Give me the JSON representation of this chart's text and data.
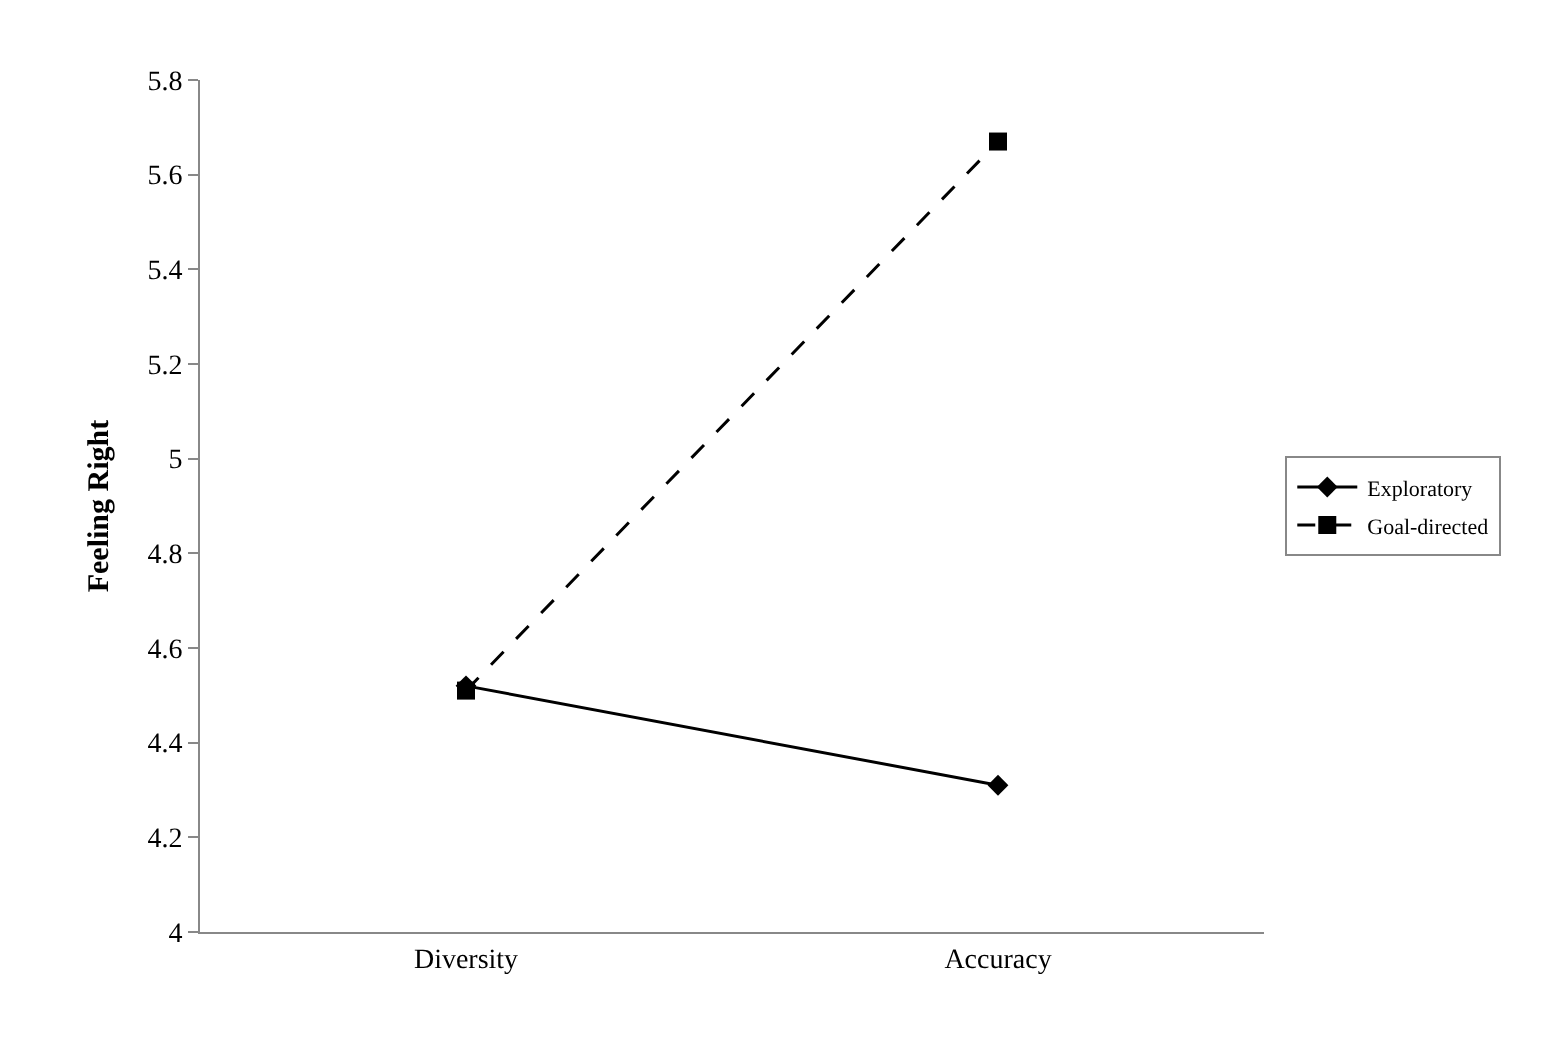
{
  "chart_data": {
    "type": "line",
    "ylabel": "Feeling Right",
    "categories": [
      "Diversity",
      "Accuracy"
    ],
    "series": [
      {
        "name": "Exploratory",
        "color": "#000000",
        "values": [
          4.52,
          4.31
        ],
        "marker": "diamond",
        "line_style": "solid"
      },
      {
        "name": "Goal-directed",
        "color": "#000000",
        "values": [
          4.51,
          5.67
        ],
        "marker": "square",
        "line_style": "dashed"
      }
    ],
    "ylim": [
      4,
      5.8
    ],
    "yticks": [
      4,
      4.2,
      4.4,
      4.6,
      4.8,
      5,
      5.2,
      5.4,
      5.6,
      5.8
    ],
    "legend": "right"
  }
}
